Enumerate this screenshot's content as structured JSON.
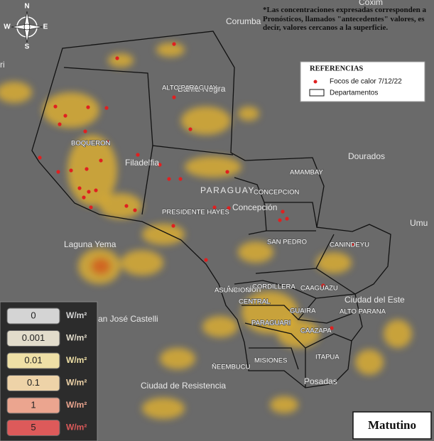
{
  "compass": {
    "n": "N",
    "s": "S",
    "e": "E",
    "w": "W"
  },
  "note": "*Las concentraciones expresadas corresponden a Pronósticos, llamados \"antecedentes\" valores, es decir, valores cercanos a la superficie.",
  "references": {
    "title": "REFERENCIAS",
    "items": [
      "Focos de calor 7/12/22",
      "Departamentos"
    ]
  },
  "departments": [
    "ALTO PARAGUAY",
    "BOQUERON",
    "PRESIDENTE HAYES",
    "AMAMBAY",
    "CONCEPCION",
    "SAN PEDRO",
    "CANINDEYU",
    "CORDILLERA",
    "CAAGUAZU",
    "ASUNCION",
    "CENTRAL",
    "GUAIRA",
    "ALTO PARANA",
    "PARAGUARI",
    "CAAZAPA",
    "ITAPUA",
    "MISIONES",
    "ÑEEMBUCU"
  ],
  "places": [
    "Coxim",
    "Corumba",
    "Bahía Negra",
    "Filadelfia",
    "PARAGUAY",
    "Concepción",
    "Dourados",
    "Umu",
    "ri",
    "Laguna Yema",
    "an José Castelli",
    "Asunción",
    "Ciudad del Este",
    "Ciudad de Resistencia",
    "Posadas"
  ],
  "legend": {
    "unit": "W/m²",
    "items": [
      {
        "value": 0,
        "color": "#d4d4d4"
      },
      {
        "value": 0.001,
        "color": "#e2dccb"
      },
      {
        "value": 0.01,
        "color": "#efe0a6"
      },
      {
        "value": 0.1,
        "color": "#eed3a8"
      },
      {
        "value": 1,
        "color": "#eba58f"
      },
      {
        "value": 5,
        "color": "#dd5a5a"
      }
    ]
  },
  "period": "Matutino"
}
